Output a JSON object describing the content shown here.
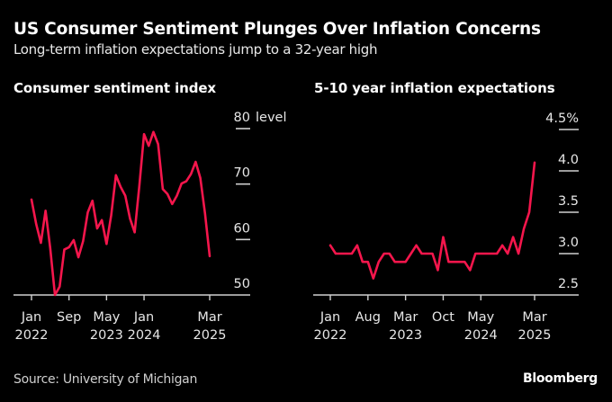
{
  "header": {
    "title": "US Consumer Sentiment Plunges Over Inflation Concerns",
    "subtitle": "Long-term inflation expectations jump to a 32-year high"
  },
  "footer": {
    "source": "Source: University of Michigan",
    "brand": "Bloomberg"
  },
  "colors": {
    "background": "#000000",
    "line": "#F5164C",
    "axis": "#D0D0D0",
    "text": "#FFFFFF"
  },
  "chart_data": [
    {
      "type": "line",
      "title": "Consumer sentiment index",
      "xlabel": "",
      "ylabel": "level",
      "ylim": [
        50,
        80
      ],
      "yticks": [
        {
          "value": 80,
          "label": "80"
        },
        {
          "value": 70,
          "label": "70"
        },
        {
          "value": 60,
          "label": "60"
        },
        {
          "value": 50,
          "label": "50"
        }
      ],
      "y_unit_label": "level",
      "xrange_months": [
        0,
        38
      ],
      "xticks": [
        {
          "month": 0,
          "line1": "Jan",
          "line2": "2022"
        },
        {
          "month": 8,
          "line1": "Sep",
          "line2": ""
        },
        {
          "month": 16,
          "line1": "May",
          "line2": "2023"
        },
        {
          "month": 24,
          "line1": "Jan",
          "line2": "2024"
        },
        {
          "month": 38,
          "line1": "Mar",
          "line2": "2025"
        }
      ],
      "grid": false,
      "series": [
        {
          "name": "Consumer sentiment index",
          "start": "Jan 2022",
          "frequency": "monthly",
          "values": [
            67.2,
            62.8,
            59.4,
            65.2,
            58.4,
            50.0,
            51.5,
            58.2,
            58.6,
            59.9,
            56.8,
            59.7,
            64.9,
            67.0,
            62.0,
            63.5,
            59.2,
            64.4,
            71.6,
            69.5,
            67.9,
            63.8,
            61.3,
            69.7,
            79.0,
            76.9,
            79.4,
            77.2,
            69.1,
            68.2,
            66.4,
            67.9,
            70.1,
            70.5,
            71.8,
            74.0,
            71.1,
            64.7,
            57.0
          ]
        }
      ]
    },
    {
      "type": "line",
      "title": "5-10 year inflation expectations",
      "xlabel": "",
      "ylabel": "%",
      "ylim": [
        2.5,
        4.5
      ],
      "yticks": [
        {
          "value": 4.5,
          "label": "4.5%"
        },
        {
          "value": 4.0,
          "label": "4.0"
        },
        {
          "value": 3.5,
          "label": "3.5"
        },
        {
          "value": 3.0,
          "label": "3.0"
        },
        {
          "value": 2.5,
          "label": "2.5"
        }
      ],
      "xrange_months": [
        0,
        38
      ],
      "xticks": [
        {
          "month": 0,
          "line1": "Jan",
          "line2": "2022"
        },
        {
          "month": 7,
          "line1": "Aug",
          "line2": ""
        },
        {
          "month": 14,
          "line1": "Mar",
          "line2": "2023"
        },
        {
          "month": 21,
          "line1": "Oct",
          "line2": ""
        },
        {
          "month": 28,
          "line1": "May",
          "line2": "2024"
        },
        {
          "month": 38,
          "line1": "Mar",
          "line2": "2025"
        }
      ],
      "grid": false,
      "series": [
        {
          "name": "5-10 year inflation expectations",
          "start": "Jan 2022",
          "frequency": "monthly",
          "values": [
            3.1,
            3.0,
            3.0,
            3.0,
            3.0,
            3.1,
            2.9,
            2.9,
            2.7,
            2.9,
            3.0,
            3.0,
            2.9,
            2.9,
            2.9,
            3.0,
            3.1,
            3.0,
            3.0,
            3.0,
            2.8,
            3.2,
            2.9,
            2.9,
            2.9,
            2.9,
            2.8,
            3.0,
            3.0,
            3.0,
            3.0,
            3.0,
            3.1,
            3.0,
            3.2,
            3.0,
            3.3,
            3.5,
            4.1
          ]
        }
      ]
    }
  ]
}
